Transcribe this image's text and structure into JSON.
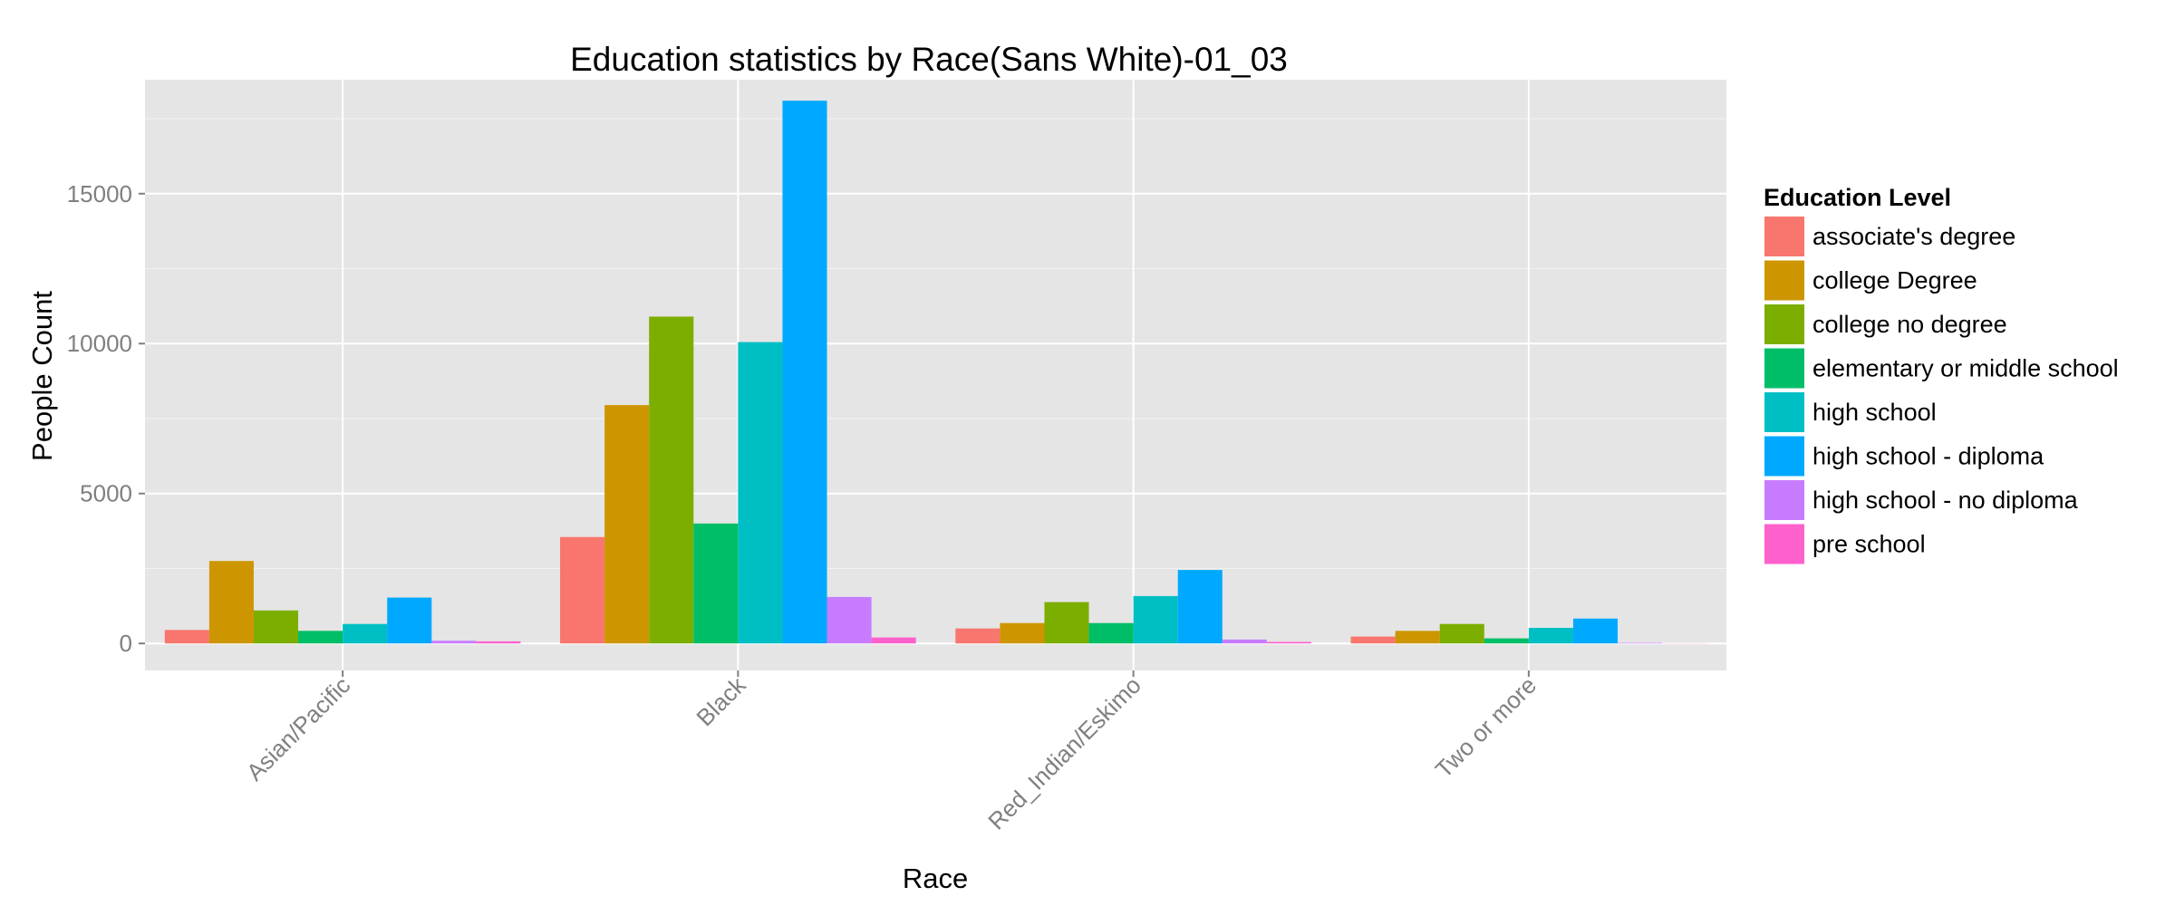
{
  "chart_data": {
    "type": "bar",
    "title": "Education statistics by Race(Sans White)-01_03",
    "xlabel": "Race",
    "ylabel": "People Count",
    "categories": [
      "Asian/Pacific",
      "Black",
      "Red_Indian/Eskimo",
      "Two or more"
    ],
    "ylim": [
      -900,
      18800
    ],
    "yticks": [
      0,
      5000,
      10000,
      15000
    ],
    "ytick_labels": [
      "0",
      "5000",
      "10000",
      "15000"
    ],
    "grid": true,
    "background": "#e5e5e5",
    "legend": {
      "title": "Education Level",
      "position": "right"
    },
    "series": [
      {
        "name": "associate's degree",
        "color": "#f8766d",
        "values": [
          450,
          3550,
          500,
          230
        ]
      },
      {
        "name": "college Degree",
        "color": "#cd9600",
        "values": [
          2750,
          7950,
          680,
          420
        ]
      },
      {
        "name": "college no degree",
        "color": "#7cae00",
        "values": [
          1100,
          10900,
          1380,
          650
        ]
      },
      {
        "name": "elementary or middle school",
        "color": "#00be67",
        "values": [
          420,
          4000,
          680,
          170
        ]
      },
      {
        "name": "high school",
        "color": "#00bfc4",
        "values": [
          650,
          10050,
          1580,
          520
        ]
      },
      {
        "name": "high school - diploma",
        "color": "#00a9ff",
        "values": [
          1530,
          18100,
          2450,
          830
        ]
      },
      {
        "name": "high school - no diploma",
        "color": "#c77cff",
        "values": [
          90,
          1550,
          130,
          20
        ]
      },
      {
        "name": "pre school",
        "color": "#ff61cc",
        "values": [
          70,
          200,
          50,
          5
        ]
      }
    ]
  }
}
